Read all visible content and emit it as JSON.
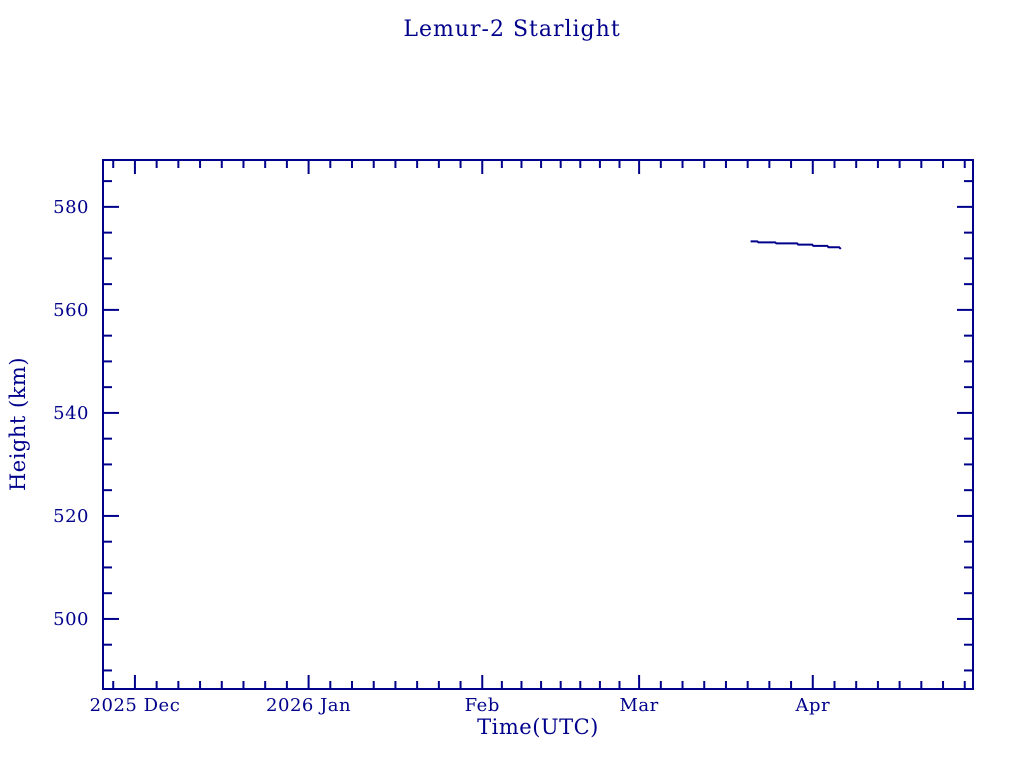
{
  "page": {
    "background": "#ffffff"
  },
  "chart_data": {
    "type": "line",
    "title": "Lemur-2 Starlight",
    "xlabel": "Time(UTC)",
    "ylabel": "Height (km)",
    "accent_color": "#00008B",
    "grid": false,
    "legend": "none",
    "x_epoch": "2025-12-01",
    "x_range_days": [
      -5.7,
      149.6
    ],
    "ylim": [
      486.4,
      589.1
    ],
    "x_major_ticks": [
      {
        "day": 0,
        "label": "2025 Dec"
      },
      {
        "day": 31,
        "label": "2026 Jan"
      },
      {
        "day": 62,
        "label": "Feb"
      },
      {
        "day": 90,
        "label": "Mar"
      },
      {
        "day": 121,
        "label": "Apr"
      }
    ],
    "x_minor_divisions_per_month": 8,
    "y_major_ticks": [
      500,
      520,
      540,
      560,
      580
    ],
    "y_minor_step": 5,
    "series": [
      {
        "name": "Lemur-2 Starlight orbit height",
        "color": "#00008B",
        "points": [
          {
            "day": 109.9,
            "date": "2026-03-21",
            "height_km": 573.3
          },
          {
            "day": 111.1,
            "date": "2026-03-22",
            "height_km": 573.3
          },
          {
            "day": 111.3,
            "date": "2026-03-22",
            "height_km": 573.11
          },
          {
            "day": 114.3,
            "date": "2026-03-25",
            "height_km": 573.11
          },
          {
            "day": 114.5,
            "date": "2026-03-25",
            "height_km": 572.91
          },
          {
            "day": 118.2,
            "date": "2026-03-29",
            "height_km": 572.91
          },
          {
            "day": 118.4,
            "date": "2026-03-29",
            "height_km": 572.68
          },
          {
            "day": 120.9,
            "date": "2026-03-31",
            "height_km": 572.68
          },
          {
            "day": 121.1,
            "date": "2026-04-01",
            "height_km": 572.43
          },
          {
            "day": 123.6,
            "date": "2026-04-03",
            "height_km": 572.43
          },
          {
            "day": 123.8,
            "date": "2026-04-03",
            "height_km": 572.18
          },
          {
            "day": 125.7,
            "date": "2026-04-05",
            "height_km": 572.18
          },
          {
            "day": 126.0,
            "date": "2026-04-06",
            "height_km": 571.85
          }
        ]
      }
    ]
  }
}
